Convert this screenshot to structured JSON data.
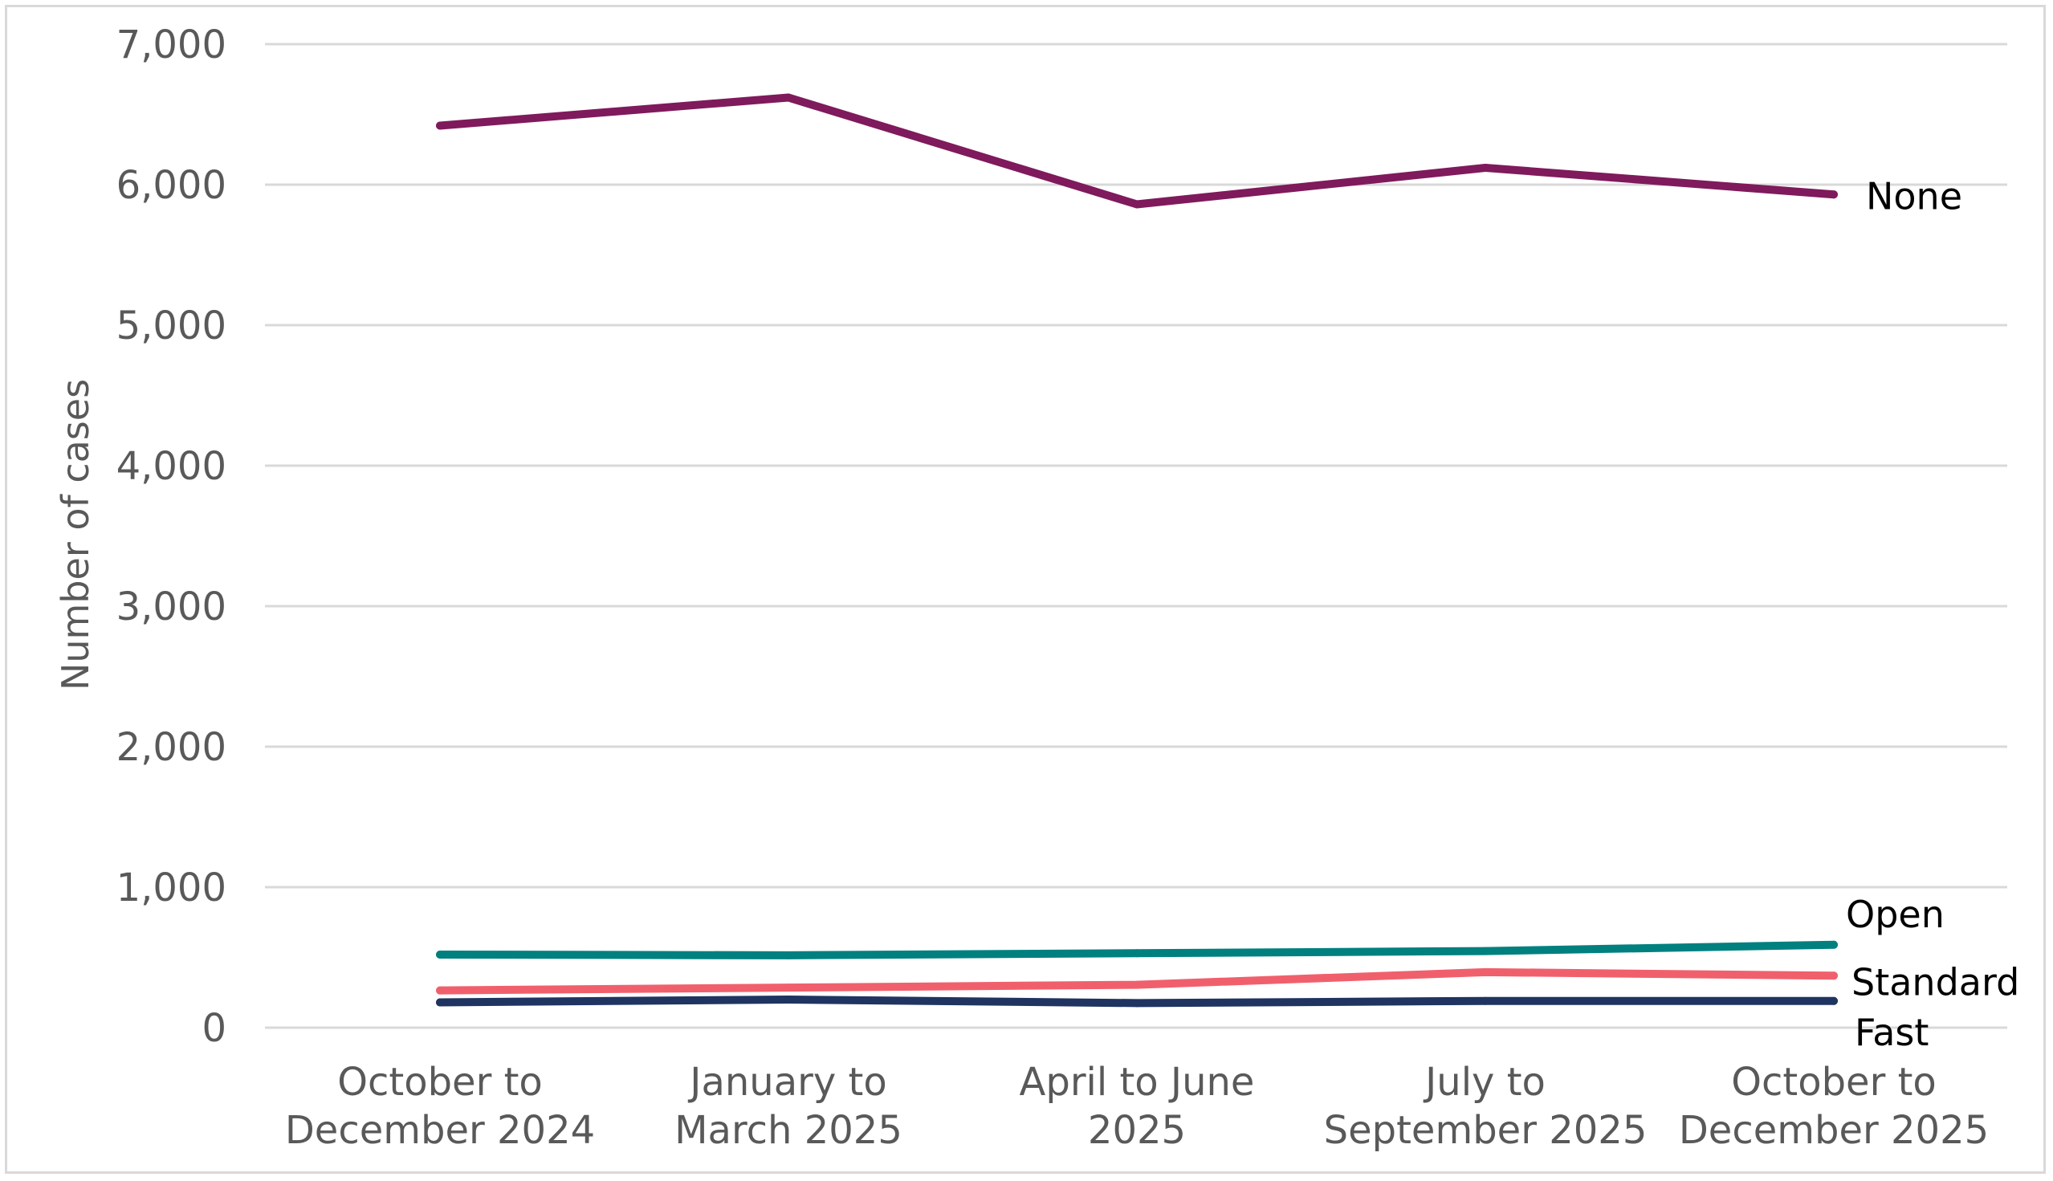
{
  "chart_data": {
    "type": "line",
    "title": "",
    "xlabel": "",
    "ylabel": "Number of cases",
    "ylim": [
      0,
      7000
    ],
    "yticks": [
      0,
      1000,
      2000,
      3000,
      4000,
      5000,
      6000,
      7000
    ],
    "ytick_labels": [
      "0",
      "1,000",
      "2,000",
      "3,000",
      "4,000",
      "5,000",
      "6,000",
      "7,000"
    ],
    "grid": "horizontal",
    "legend": "none (series labelled at right end of lines)",
    "categories": [
      [
        "October to",
        "December 2024"
      ],
      [
        "January to",
        "March 2025"
      ],
      [
        "April to June",
        "2025"
      ],
      [
        "July to",
        "September 2025"
      ],
      [
        "October to",
        "December 2025"
      ]
    ],
    "series": [
      {
        "name": "None",
        "color": "#7f1a5c",
        "values": [
          6420,
          6620,
          5860,
          6120,
          5930
        ]
      },
      {
        "name": "Open",
        "color": "#00807f",
        "values": [
          520,
          515,
          530,
          545,
          590
        ]
      },
      {
        "name": "Standard",
        "color": "#f0606c",
        "values": [
          265,
          285,
          305,
          395,
          370
        ]
      },
      {
        "name": "Fast",
        "color": "#1f3461",
        "values": [
          180,
          200,
          175,
          190,
          190
        ]
      }
    ]
  }
}
